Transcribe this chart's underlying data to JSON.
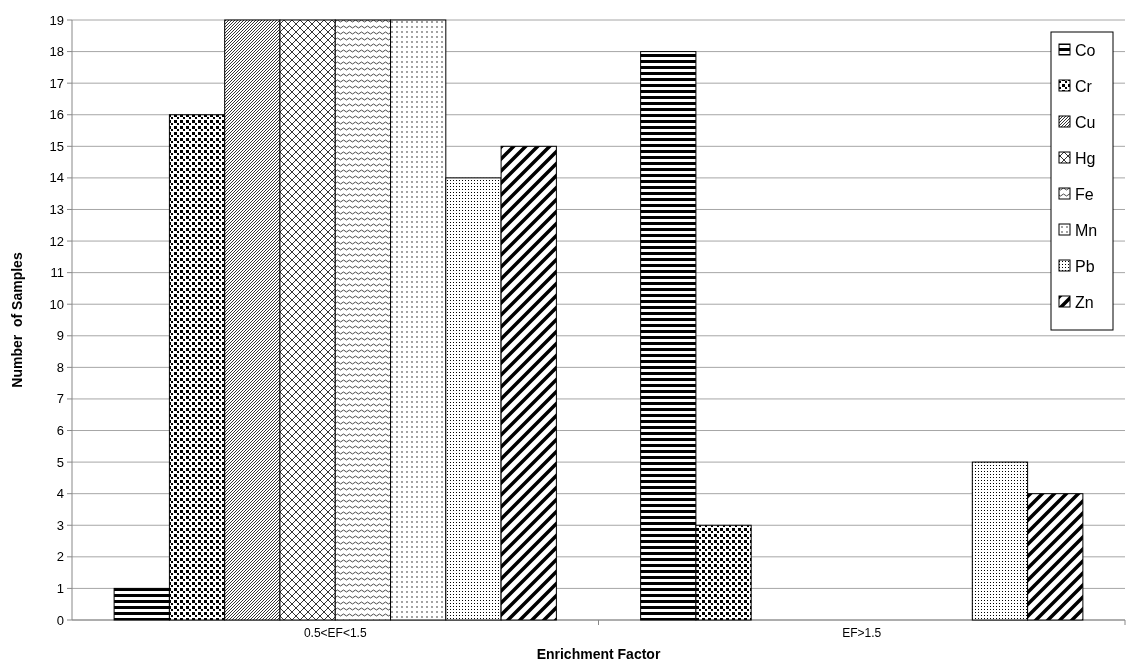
{
  "chart_data": {
    "type": "bar",
    "xlabel": "Enrichment Factor",
    "ylabel": "Number  of Samples",
    "categories": [
      "0.5<EF<1.5",
      "EF>1.5"
    ],
    "series": [
      {
        "name": "Co",
        "color": "#000000",
        "values": [
          1,
          18
        ]
      },
      {
        "name": "Cr",
        "color": "#000000",
        "values": [
          16,
          3
        ]
      },
      {
        "name": "Cu",
        "color": "#000000",
        "values": [
          19,
          0
        ]
      },
      {
        "name": "Hg",
        "color": "#000000",
        "values": [
          19,
          0
        ]
      },
      {
        "name": "Fe",
        "color": "#000000",
        "values": [
          19,
          0
        ]
      },
      {
        "name": "Mn",
        "color": "#000000",
        "values": [
          19,
          0
        ]
      },
      {
        "name": "Pb",
        "color": "#000000",
        "values": [
          14,
          5
        ]
      },
      {
        "name": "Zn",
        "color": "#000000",
        "values": [
          15,
          4
        ]
      }
    ],
    "ylim": [
      0,
      19
    ],
    "yticks": [
      0,
      1,
      2,
      3,
      4,
      5,
      6,
      7,
      8,
      9,
      10,
      11,
      12,
      13,
      14,
      15,
      16,
      17,
      18,
      19
    ],
    "grid": "y",
    "legend": "top right"
  }
}
